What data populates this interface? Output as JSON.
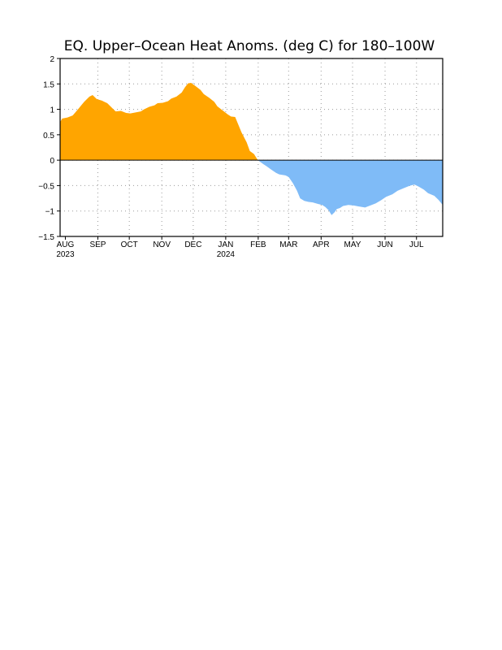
{
  "chart_data": {
    "type": "area",
    "title": "EQ. Upper–Ocean Heat Anoms. (deg C) for 180–100W",
    "xlabel": "",
    "ylabel": "",
    "ylim": [
      -1.5,
      2
    ],
    "yticks": [
      "2",
      "1.5",
      "1",
      "0.5",
      "0",
      "−0.5",
      "−1",
      "−1.5"
    ],
    "ytick_values": [
      2,
      1.5,
      1,
      0.5,
      0,
      -0.5,
      -1,
      -1.5
    ],
    "xlim": [
      "2023-07-27",
      "2024-07-26"
    ],
    "xticks": [
      {
        "date": "2023-08-01",
        "label": "AUG",
        "year": "2023"
      },
      {
        "date": "2023-09-01",
        "label": "SEP",
        "year": ""
      },
      {
        "date": "2023-10-01",
        "label": "OCT",
        "year": ""
      },
      {
        "date": "2023-11-01",
        "label": "NOV",
        "year": ""
      },
      {
        "date": "2023-12-01",
        "label": "DEC",
        "year": ""
      },
      {
        "date": "2024-01-01",
        "label": "JAN",
        "year": "2024"
      },
      {
        "date": "2024-02-01",
        "label": "FEB",
        "year": ""
      },
      {
        "date": "2024-03-01",
        "label": "MAR",
        "year": ""
      },
      {
        "date": "2024-04-01",
        "label": "APR",
        "year": ""
      },
      {
        "date": "2024-05-01",
        "label": "MAY",
        "year": ""
      },
      {
        "date": "2024-06-01",
        "label": "JUN",
        "year": ""
      },
      {
        "date": "2024-07-01",
        "label": "JUL",
        "year": ""
      }
    ],
    "grid": true,
    "colors": {
      "positive": "#ffa500",
      "negative": "#7fbbf7"
    },
    "series": [
      {
        "x": [
          "2023-07-27",
          "2023-07-29",
          "2023-08-03",
          "2023-08-08",
          "2023-08-13",
          "2023-08-19",
          "2023-08-24",
          "2023-08-27",
          "2023-08-31",
          "2023-09-05",
          "2023-09-10",
          "2023-09-15",
          "2023-09-18",
          "2023-09-23",
          "2023-09-28",
          "2023-10-02",
          "2023-10-07",
          "2023-10-12",
          "2023-10-15",
          "2023-10-20",
          "2023-10-25",
          "2023-10-28",
          "2023-11-02",
          "2023-11-07",
          "2023-11-10",
          "2023-11-15",
          "2023-11-20",
          "2023-11-23",
          "2023-11-26",
          "2023-11-29",
          "2023-12-03",
          "2023-12-08",
          "2023-12-11",
          "2023-12-16",
          "2023-12-21",
          "2023-12-24",
          "2023-12-29",
          "2024-01-03",
          "2024-01-06",
          "2024-01-10",
          "2024-01-13",
          "2024-01-16",
          "2024-01-21",
          "2024-01-24",
          "2024-01-28",
          "2024-01-31",
          "2024-02-02",
          "2024-02-06",
          "2024-02-09",
          "2024-02-13",
          "2024-02-18",
          "2024-02-21",
          "2024-02-27",
          "2024-03-01",
          "2024-03-05",
          "2024-03-09",
          "2024-03-12",
          "2024-03-16",
          "2024-03-20",
          "2024-03-24",
          "2024-03-29",
          "2024-04-02",
          "2024-04-05",
          "2024-04-08",
          "2024-04-11",
          "2024-04-14",
          "2024-04-16",
          "2024-04-19",
          "2024-04-22",
          "2024-04-27",
          "2024-05-02",
          "2024-05-07",
          "2024-05-13",
          "2024-05-18",
          "2024-05-23",
          "2024-05-28",
          "2024-06-02",
          "2024-06-08",
          "2024-06-13",
          "2024-06-19",
          "2024-06-25",
          "2024-06-29",
          "2024-07-03",
          "2024-07-08",
          "2024-07-12",
          "2024-07-18",
          "2024-07-22",
          "2024-07-26"
        ],
        "values": [
          0.75,
          0.82,
          0.84,
          0.88,
          1.0,
          1.15,
          1.25,
          1.28,
          1.2,
          1.17,
          1.12,
          1.02,
          0.96,
          0.97,
          0.93,
          0.92,
          0.94,
          0.96,
          1.0,
          1.05,
          1.08,
          1.12,
          1.13,
          1.16,
          1.21,
          1.25,
          1.33,
          1.43,
          1.51,
          1.52,
          1.46,
          1.38,
          1.3,
          1.23,
          1.15,
          1.06,
          0.98,
          0.9,
          0.86,
          0.85,
          0.7,
          0.55,
          0.35,
          0.18,
          0.12,
          0.02,
          -0.02,
          -0.08,
          -0.12,
          -0.18,
          -0.25,
          -0.28,
          -0.3,
          -0.33,
          -0.45,
          -0.6,
          -0.75,
          -0.8,
          -0.82,
          -0.83,
          -0.86,
          -0.88,
          -0.92,
          -0.98,
          -1.08,
          -1.02,
          -0.96,
          -0.94,
          -0.9,
          -0.88,
          -0.89,
          -0.91,
          -0.93,
          -0.89,
          -0.85,
          -0.79,
          -0.72,
          -0.67,
          -0.6,
          -0.55,
          -0.5,
          -0.48,
          -0.52,
          -0.58,
          -0.65,
          -0.7,
          -0.78,
          -0.88
        ]
      }
    ]
  }
}
